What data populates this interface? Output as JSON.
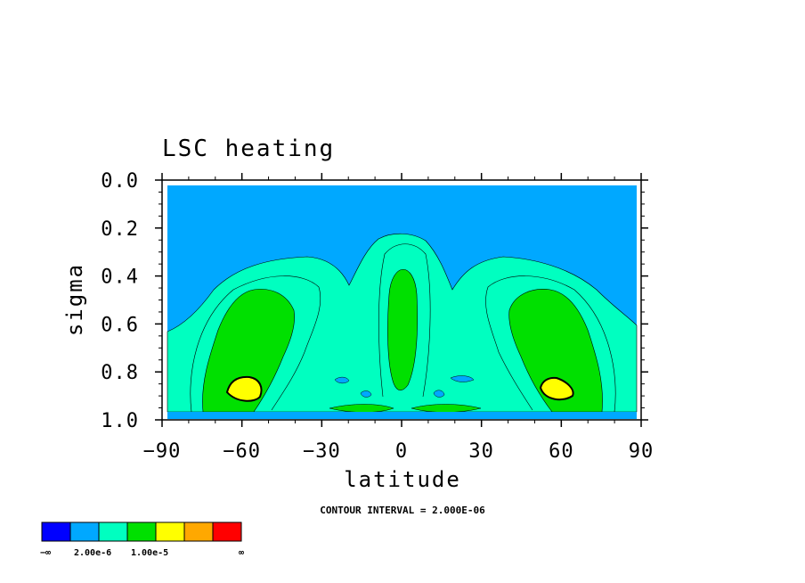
{
  "chart_data": {
    "type": "contour",
    "title": "LSC heating",
    "xlabel": "latitude",
    "ylabel": "sigma",
    "xlim": [
      -90,
      90
    ],
    "ylim": [
      1.0,
      0.0
    ],
    "xticks": [
      -90,
      -60,
      -30,
      0,
      30,
      60,
      90
    ],
    "xtick_labels": [
      "−90",
      "−60",
      "−30",
      "0",
      "30",
      "60",
      "90"
    ],
    "yticks": [
      0.0,
      0.2,
      0.4,
      0.6,
      0.8,
      1.0
    ],
    "ytick_labels": [
      "0.0",
      "0.2",
      "0.4",
      "0.6",
      "0.8",
      "1.0"
    ],
    "contour_interval_label": "CONTOUR INTERVAL = 2.000E-06",
    "colorbar": {
      "colors": [
        "#0000ff",
        "#00a8ff",
        "#00ffc0",
        "#00e000",
        "#ffff00",
        "#ffa800",
        "#ff0000"
      ],
      "labels": [
        "−∞",
        "2.00e-6",
        "1.00e-5",
        "∞"
      ]
    },
    "regions": [
      {
        "level": "background",
        "color": "#00a8ff"
      },
      {
        "level": "band1",
        "color": "#00ffc0"
      },
      {
        "level": "band2",
        "color": "#00e000"
      },
      {
        "level": "band3",
        "color": "#ffff00"
      }
    ]
  }
}
